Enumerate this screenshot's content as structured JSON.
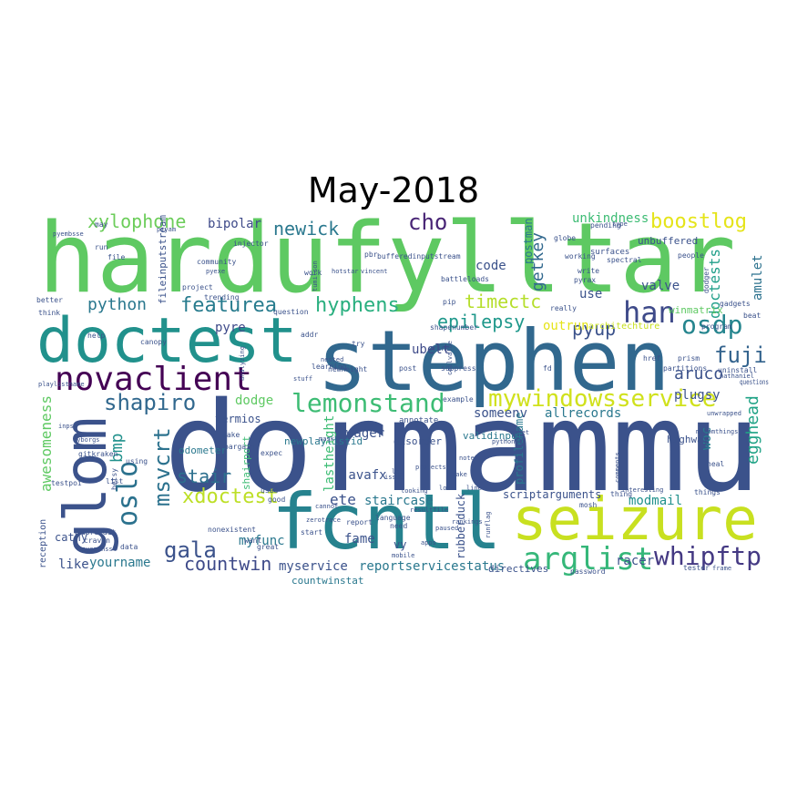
{
  "title": "May-2018",
  "words": [
    {
      "text": "hardufylltar",
      "color": "#5ec962"
    },
    {
      "text": "dormammu",
      "color": "#3b528b"
    },
    {
      "text": "stephen",
      "color": "#31688e"
    },
    {
      "text": "doctest",
      "color": "#21918c"
    },
    {
      "text": "fcntl",
      "color": "#26828e"
    },
    {
      "text": "seizure",
      "color": "#c8e020"
    },
    {
      "text": "glom",
      "color": "#3b528b"
    },
    {
      "text": "novaclient",
      "color": "#440154"
    },
    {
      "text": "mywindowsservice",
      "color": "#d0e11c"
    },
    {
      "text": "lemonstand",
      "color": "#3dbc74"
    },
    {
      "text": "arglist",
      "color": "#35b779"
    },
    {
      "text": "whipftp",
      "color": "#443983"
    },
    {
      "text": "shapiro",
      "color": "#31688e"
    },
    {
      "text": "oslo",
      "color": "#2c728e"
    },
    {
      "text": "msvcrt",
      "color": "#2c728e"
    },
    {
      "text": "xylophone",
      "color": "#6ccd5a"
    },
    {
      "text": "featurea",
      "color": "#287c8e"
    },
    {
      "text": "hyphens",
      "color": "#29af7f"
    },
    {
      "text": "newick",
      "color": "#2a788e"
    },
    {
      "text": "cho",
      "color": "#482475"
    },
    {
      "text": "han",
      "color": "#3e4a89"
    },
    {
      "text": "osdp",
      "color": "#25858e"
    },
    {
      "text": "boostlog",
      "color": "#e5e419"
    },
    {
      "text": "fuji",
      "color": "#33638d"
    },
    {
      "text": "python",
      "color": "#2a788e"
    },
    {
      "text": "gala",
      "color": "#3b528b"
    },
    {
      "text": "xdoctest",
      "color": "#bddf26"
    },
    {
      "text": "countwin",
      "color": "#3e4a89"
    },
    {
      "text": "stair",
      "color": "#2d708e"
    },
    {
      "text": "awesomeness",
      "color": "#5ec962"
    },
    {
      "text": "egghead",
      "color": "#20a386"
    },
    {
      "text": "aruco",
      "color": "#3b528b"
    },
    {
      "text": "timectc",
      "color": "#b5de2b"
    },
    {
      "text": "epilepsy",
      "color": "#1f988b"
    },
    {
      "text": "pyup",
      "color": "#3b528b"
    },
    {
      "text": "getkey",
      "color": "#31688e"
    },
    {
      "text": "doctests",
      "color": "#1f9e89"
    },
    {
      "text": "amulet",
      "color": "#2c728e"
    },
    {
      "text": "woc",
      "color": "#277f8e"
    },
    {
      "text": "unkindness",
      "color": "#3dbc74"
    },
    {
      "text": "bipolar",
      "color": "#3e4a89"
    },
    {
      "text": "pyre",
      "color": "#3e4a89"
    },
    {
      "text": "ubelt",
      "color": "#3e4a89"
    },
    {
      "text": "code",
      "color": "#3b528b"
    },
    {
      "text": "postman",
      "color": "#2a788e"
    },
    {
      "text": "valve",
      "color": "#3b528b"
    },
    {
      "text": "use",
      "color": "#3b528b"
    },
    {
      "text": "outrun",
      "color": "#e5e419"
    },
    {
      "text": "plugsy",
      "color": "#3b528b"
    },
    {
      "text": "allrecords",
      "color": "#2a788e"
    },
    {
      "text": "someenv",
      "color": "#3b528b"
    },
    {
      "text": "dodge",
      "color": "#5ec962"
    },
    {
      "text": "termios",
      "color": "#3b528b"
    },
    {
      "text": "bmp",
      "color": "#21918c"
    },
    {
      "text": "lastheight",
      "color": "#3dbc74"
    },
    {
      "text": "wager",
      "color": "#3b528b"
    },
    {
      "text": "javafx",
      "color": "#3b528b"
    },
    {
      "text": "ete",
      "color": "#3b528b"
    },
    {
      "text": "staircase",
      "color": "#2a788e"
    },
    {
      "text": "fame",
      "color": "#3b528b"
    },
    {
      "text": "myfunc",
      "color": "#2a788e"
    },
    {
      "text": "yourname",
      "color": "#2a788e"
    },
    {
      "text": "myservice",
      "color": "#3b528b"
    },
    {
      "text": "reportservicestatus",
      "color": "#2a788e"
    },
    {
      "text": "racer",
      "color": "#3b528b"
    },
    {
      "text": "modmail",
      "color": "#21918c"
    },
    {
      "text": "rubberduck",
      "color": "#3b528b"
    },
    {
      "text": "scriptarguments",
      "color": "#3b528b"
    },
    {
      "text": "profilename",
      "color": "#2a788e"
    },
    {
      "text": "countwinstat",
      "color": "#2a788e"
    },
    {
      "text": "directives",
      "color": "#3b528b"
    },
    {
      "text": "like",
      "color": "#3b528b"
    },
    {
      "text": "cathy",
      "color": "#3b528b"
    },
    {
      "text": "reception",
      "color": "#3b528b"
    },
    {
      "text": "fileinputstream",
      "color": "#3b528b"
    },
    {
      "text": "odometer",
      "color": "#2a788e"
    },
    {
      "text": "newplaylistid",
      "color": "#2a788e"
    },
    {
      "text": "disorder",
      "color": "#3b528b"
    },
    {
      "text": "validinput",
      "color": "#2a788e"
    },
    {
      "text": "highway",
      "color": "#3b528b"
    },
    {
      "text": "unbuffered",
      "color": "#3b528b"
    },
    {
      "text": "winmatrix",
      "color": "#5ec962"
    },
    {
      "text": "architechture",
      "color": "#c8e020"
    },
    {
      "text": "vy",
      "color": "#3b528b"
    },
    {
      "text": "shairport",
      "color": "#3dbc74"
    },
    {
      "text": "annotate",
      "color": "#3b528b"
    },
    {
      "text": "surfaces",
      "color": "#3b528b"
    },
    {
      "text": "partitions",
      "color": "#3b528b"
    },
    {
      "text": "heal",
      "color": "#3b528b"
    },
    {
      "text": "shapenumber",
      "color": "#3b528b"
    },
    {
      "text": "injector",
      "color": "#3b528b"
    },
    {
      "text": "community",
      "color": "#3b528b"
    },
    {
      "text": "gitkraken",
      "color": "#3b528b"
    },
    {
      "text": "pbr",
      "color": "#3b528b"
    },
    {
      "text": "bufferedinputstream",
      "color": "#3b528b"
    },
    {
      "text": "globe",
      "color": "#3b528b"
    },
    {
      "text": "battleloads",
      "color": "#3b528b"
    },
    {
      "text": "print",
      "color": "#3b528b"
    },
    {
      "text": "post",
      "color": "#3b528b"
    },
    {
      "text": "suppress",
      "color": "#3b528b"
    },
    {
      "text": "example",
      "color": "#3b528b"
    },
    {
      "text": "questions",
      "color": "#3b528b"
    },
    {
      "text": "gadgets",
      "color": "#3b528b"
    },
    {
      "text": "better",
      "color": "#3b528b"
    },
    {
      "text": "think",
      "color": "#3b528b"
    },
    {
      "text": "canopy",
      "color": "#3b528b"
    },
    {
      "text": "help",
      "color": "#3b528b"
    },
    {
      "text": "work",
      "color": "#3b528b"
    },
    {
      "text": "question",
      "color": "#3b528b"
    },
    {
      "text": "language",
      "color": "#3b528b"
    },
    {
      "text": "want",
      "color": "#3b528b"
    },
    {
      "text": "used",
      "color": "#3b528b"
    },
    {
      "text": "good",
      "color": "#3b528b"
    },
    {
      "text": "data",
      "color": "#3b528b"
    },
    {
      "text": "start",
      "color": "#3b528b"
    },
    {
      "text": "great",
      "color": "#3b528b"
    },
    {
      "text": "need",
      "color": "#3b528b"
    },
    {
      "text": "report",
      "color": "#3b528b"
    },
    {
      "text": "password",
      "color": "#3b528b"
    },
    {
      "text": "things",
      "color": "#3b528b"
    },
    {
      "text": "tester",
      "color": "#3b528b"
    },
    {
      "text": "mosh",
      "color": "#3b528b"
    },
    {
      "text": "nonexistent",
      "color": "#3b528b"
    },
    {
      "text": "people",
      "color": "#3b528b"
    },
    {
      "text": "working",
      "color": "#3b528b"
    },
    {
      "text": "pyrax",
      "color": "#3b528b"
    },
    {
      "text": "write",
      "color": "#3b528b"
    },
    {
      "text": "prism",
      "color": "#3b528b"
    },
    {
      "text": "href",
      "color": "#3b528b"
    },
    {
      "text": "dodger",
      "color": "#3b528b"
    },
    {
      "text": "program",
      "color": "#3b528b"
    },
    {
      "text": "thing",
      "color": "#3b528b"
    },
    {
      "text": "learning",
      "color": "#3b528b"
    },
    {
      "text": "file",
      "color": "#3b528b"
    },
    {
      "text": "run",
      "color": "#3b528b"
    },
    {
      "text": "may",
      "color": "#3b528b"
    },
    {
      "text": "project",
      "color": "#3b528b"
    },
    {
      "text": "trending",
      "color": "#3b528b"
    },
    {
      "text": "pip",
      "color": "#3b528b"
    },
    {
      "text": "addr",
      "color": "#3b528b"
    },
    {
      "text": "try",
      "color": "#3b528b"
    },
    {
      "text": "bargain",
      "color": "#3b528b"
    },
    {
      "text": "make",
      "color": "#3b528b"
    },
    {
      "text": "expec",
      "color": "#3b528b"
    },
    {
      "text": "subreddit",
      "color": "#3b528b"
    },
    {
      "text": "craven",
      "color": "#3b528b"
    },
    {
      "text": "testpoi",
      "color": "#3b528b"
    },
    {
      "text": "betsy",
      "color": "#3b528b"
    },
    {
      "text": "list",
      "color": "#3b528b"
    },
    {
      "text": "using",
      "color": "#3b528b"
    },
    {
      "text": "newheight",
      "color": "#3b528b"
    },
    {
      "text": "really",
      "color": "#3b528b"
    },
    {
      "text": "pending",
      "color": "#3b528b"
    },
    {
      "text": "spectral",
      "color": "#3b528b"
    },
    {
      "text": "uninstall",
      "color": "#3b528b"
    },
    {
      "text": "beat",
      "color": "#3b528b"
    },
    {
      "text": "playlistname",
      "color": "#3b528b"
    },
    {
      "text": "pyembsse",
      "color": "#3b528b"
    },
    {
      "text": "pyopenssl",
      "color": "#3b528b"
    },
    {
      "text": "pyexe",
      "color": "#3b528b"
    },
    {
      "text": "vincent",
      "color": "#3b528b"
    },
    {
      "text": "runflag",
      "color": "#3b528b"
    },
    {
      "text": "cellvalue",
      "color": "#3b528b"
    },
    {
      "text": "pryam",
      "color": "#3b528b"
    },
    {
      "text": "note",
      "color": "#3b528b"
    },
    {
      "text": "projects",
      "color": "#3b528b"
    },
    {
      "text": "paused",
      "color": "#3b528b"
    },
    {
      "text": "type",
      "color": "#3b528b"
    },
    {
      "text": "tumilson",
      "color": "#3b528b"
    },
    {
      "text": "interesting",
      "color": "#3b528b"
    },
    {
      "text": "comments",
      "color": "#3b528b"
    },
    {
      "text": "nathaniel",
      "color": "#3b528b"
    },
    {
      "text": "unwrapped",
      "color": "#3b528b"
    },
    {
      "text": "pythonic",
      "color": "#3b528b"
    },
    {
      "text": "sheet",
      "color": "#3b528b"
    },
    {
      "text": "mask",
      "color": "#3b528b"
    },
    {
      "text": "stuff",
      "color": "#3b528b"
    },
    {
      "text": "zerotrace",
      "color": "#3b528b"
    },
    {
      "text": "rankings",
      "color": "#3b528b"
    },
    {
      "text": "nested",
      "color": "#3b528b"
    },
    {
      "text": "cyborgs",
      "color": "#3b528b"
    },
    {
      "text": "mfromthings",
      "color": "#3b528b"
    },
    {
      "text": "resultfile",
      "color": "#3b528b"
    },
    {
      "text": "issue",
      "color": "#3b528b"
    },
    {
      "text": "frame",
      "color": "#3b528b"
    },
    {
      "text": "analyzing",
      "color": "#3b528b"
    },
    {
      "text": "inpsi",
      "color": "#3b528b"
    },
    {
      "text": "cannot",
      "color": "#3b528b"
    },
    {
      "text": "mobile",
      "color": "#3b528b"
    },
    {
      "text": "apps",
      "color": "#3b528b"
    },
    {
      "text": "fd",
      "color": "#3b528b"
    },
    {
      "text": "log",
      "color": "#3b528b"
    },
    {
      "text": "line",
      "color": "#3b528b"
    },
    {
      "text": "cake",
      "color": "#3b528b"
    },
    {
      "text": "lol",
      "color": "#3b528b"
    },
    {
      "text": "looking",
      "color": "#3b528b"
    },
    {
      "text": "hotstar",
      "color": "#3b528b"
    }
  ]
}
